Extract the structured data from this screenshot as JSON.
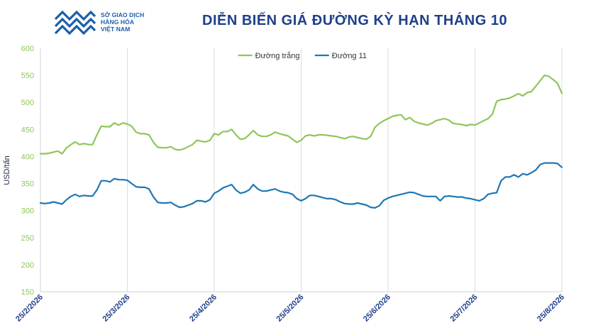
{
  "header": {
    "logo_lines": [
      "SỞ GIAO DỊCH",
      "HÀNG HÓA",
      "VIỆT NAM"
    ],
    "title": "DIỄN BIẾN GIÁ ĐƯỜNG KỲ HẠN THÁNG 10"
  },
  "chart_data": {
    "type": "line",
    "title": "DIỄN BIẾN GIÁ ĐƯỜNG KỲ HẠN THÁNG 10",
    "xlabel": "",
    "ylabel": "USD/tấn",
    "ylim": [
      150,
      600
    ],
    "yticks": [
      150,
      200,
      250,
      300,
      350,
      400,
      450,
      500,
      550,
      600
    ],
    "xtick_labels": [
      "25/2/2026",
      "25/3/2026",
      "25/4/2026",
      "25/5/2026",
      "25/6/2026",
      "25/7/2026",
      "25/8/2026"
    ],
    "x_range_points": [
      0,
      120
    ],
    "xtick_positions": [
      0,
      20,
      40,
      60,
      80,
      100,
      120
    ],
    "grid": "vertical",
    "legend_position": "top-center",
    "series": [
      {
        "name": "Đường trắng",
        "color": "#8fc65a",
        "values": [
          405,
          405,
          406,
          408,
          410,
          405,
          416,
          422,
          427,
          422,
          424,
          422,
          422,
          440,
          456,
          455,
          455,
          462,
          458,
          462,
          460,
          456,
          445,
          442,
          442,
          440,
          426,
          417,
          416,
          416,
          418,
          413,
          412,
          414,
          418,
          422,
          430,
          428,
          427,
          430,
          442,
          440,
          446,
          446,
          450,
          440,
          432,
          433,
          440,
          448,
          440,
          437,
          437,
          440,
          445,
          442,
          440,
          438,
          432,
          426,
          430,
          438,
          440,
          438,
          440,
          440,
          439,
          438,
          437,
          435,
          433,
          436,
          437,
          435,
          433,
          432,
          437,
          454,
          461,
          466,
          470,
          474,
          476,
          477,
          468,
          472,
          465,
          462,
          460,
          458,
          461,
          466,
          468,
          470,
          467,
          461,
          460,
          459,
          457,
          459,
          458,
          462,
          466,
          470,
          478,
          502,
          505,
          506,
          508,
          512,
          516,
          512,
          518,
          520,
          530,
          540,
          550,
          548,
          542,
          535,
          517
        ]
      },
      {
        "name": "Đường 11",
        "color": "#1f77b4",
        "values": [
          314,
          313,
          314,
          316,
          314,
          312,
          320,
          326,
          330,
          326,
          328,
          327,
          327,
          338,
          355,
          355,
          353,
          359,
          357,
          357,
          356,
          350,
          344,
          343,
          343,
          340,
          325,
          315,
          314,
          314,
          315,
          310,
          306,
          307,
          310,
          313,
          318,
          318,
          316,
          320,
          332,
          336,
          342,
          345,
          348,
          338,
          332,
          334,
          338,
          348,
          340,
          336,
          336,
          338,
          340,
          336,
          334,
          333,
          330,
          322,
          318,
          322,
          328,
          328,
          326,
          324,
          322,
          322,
          320,
          316,
          313,
          312,
          312,
          314,
          312,
          310,
          306,
          305,
          309,
          319,
          323,
          326,
          328,
          330,
          332,
          334,
          333,
          330,
          327,
          326,
          326,
          326,
          318,
          326,
          327,
          326,
          325,
          325,
          323,
          322,
          320,
          318,
          322,
          330,
          332,
          333,
          355,
          362,
          362,
          366,
          362,
          368,
          366,
          370,
          375,
          385,
          388,
          388,
          388,
          387,
          380
        ]
      }
    ]
  }
}
